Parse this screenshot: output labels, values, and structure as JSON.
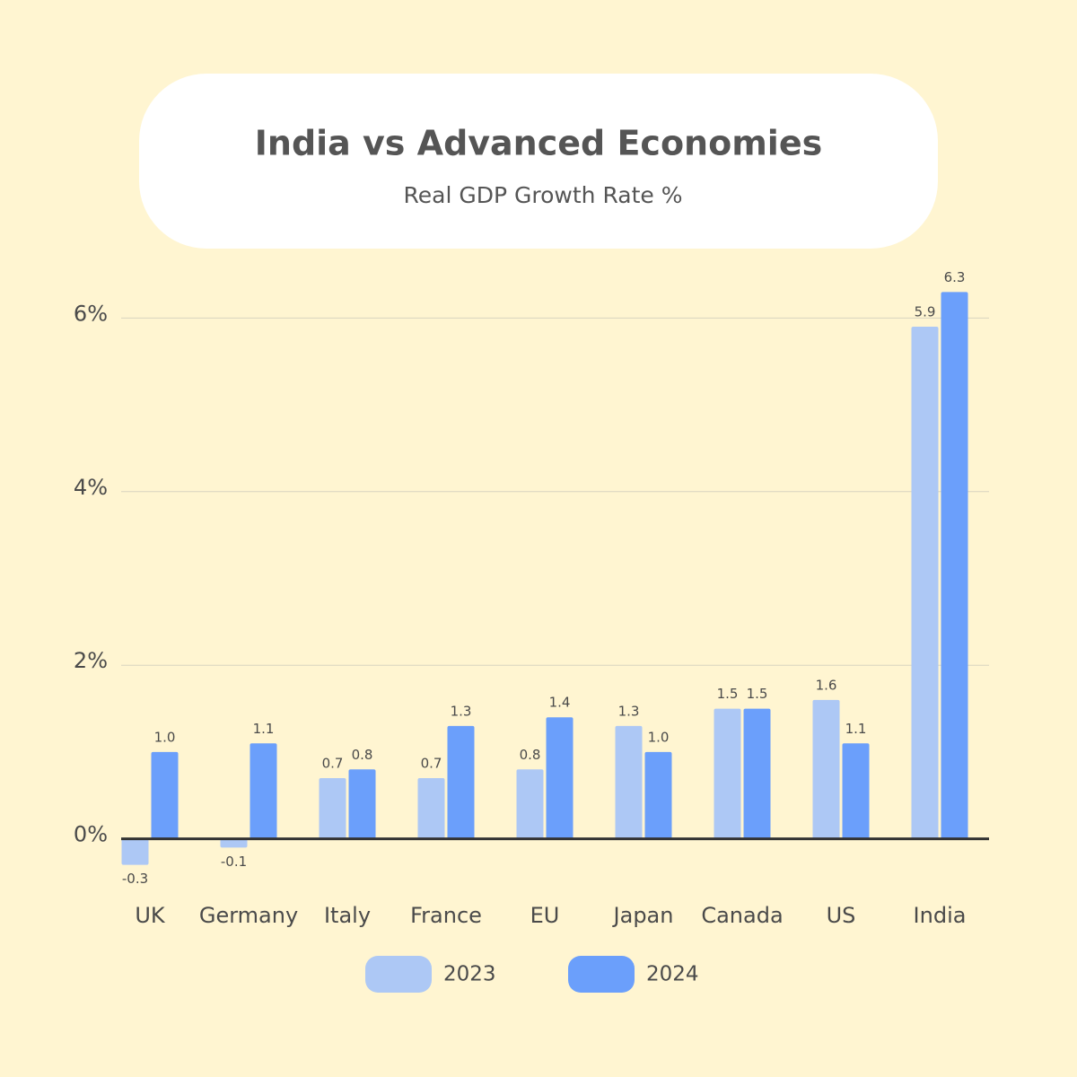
{
  "chart_data": {
    "type": "bar",
    "title": "India vs Advanced Economies",
    "subtitle": "Real GDP Growth Rate %",
    "categories": [
      "UK",
      "Germany",
      "Italy",
      "France",
      "EU",
      "Japan",
      "Canada",
      "US",
      "India"
    ],
    "series": [
      {
        "name": "2023",
        "color": "#adc8f5",
        "values": [
          -0.3,
          -0.1,
          0.7,
          0.7,
          0.8,
          1.3,
          1.5,
          1.6,
          5.9
        ]
      },
      {
        "name": "2024",
        "color": "#6b9ffb",
        "values": [
          1.0,
          1.1,
          0.8,
          1.3,
          1.4,
          1.0,
          1.5,
          1.1,
          6.3
        ],
        "value_labels": [
          "1.0",
          "1.1",
          "0.8",
          "1.3",
          "1.4",
          "1.0",
          "1.5",
          "1.1",
          "6.3"
        ]
      }
    ],
    "ylim": [
      -0.5,
      6.5
    ],
    "yticks": [
      {
        "value": 0,
        "label": "0%"
      },
      {
        "value": 2,
        "label": "2%"
      },
      {
        "value": 4,
        "label": "4%"
      },
      {
        "value": 6,
        "label": "6%"
      }
    ],
    "grid": true
  }
}
